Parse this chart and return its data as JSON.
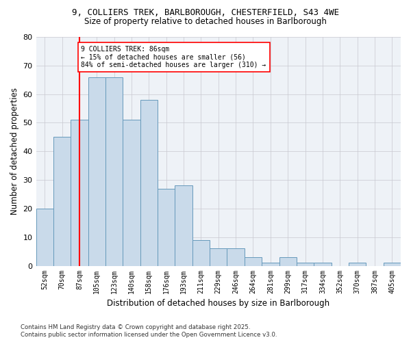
{
  "title1": "9, COLLIERS TREK, BARLBOROUGH, CHESTERFIELD, S43 4WE",
  "title2": "Size of property relative to detached houses in Barlborough",
  "xlabel": "Distribution of detached houses by size in Barlborough",
  "ylabel": "Number of detached properties",
  "categories": [
    "52sqm",
    "70sqm",
    "87sqm",
    "105sqm",
    "123sqm",
    "140sqm",
    "158sqm",
    "176sqm",
    "193sqm",
    "211sqm",
    "229sqm",
    "246sqm",
    "264sqm",
    "281sqm",
    "299sqm",
    "317sqm",
    "334sqm",
    "352sqm",
    "370sqm",
    "387sqm",
    "405sqm"
  ],
  "values": [
    20,
    45,
    51,
    66,
    66,
    51,
    58,
    27,
    28,
    9,
    6,
    6,
    3,
    1,
    3,
    1,
    1,
    0,
    1,
    0,
    1
  ],
  "bar_color": "#c9daea",
  "bar_edge_color": "#6699bb",
  "red_line_index": 2,
  "ylim": [
    0,
    80
  ],
  "yticks": [
    0,
    10,
    20,
    30,
    40,
    50,
    60,
    70,
    80
  ],
  "annotation_title": "9 COLLIERS TREK: 86sqm",
  "annotation_line1": "← 15% of detached houses are smaller (56)",
  "annotation_line2": "84% of semi-detached houses are larger (310) →",
  "footer1": "Contains HM Land Registry data © Crown copyright and database right 2025.",
  "footer2": "Contains public sector information licensed under the Open Government Licence v3.0.",
  "bg_color": "#ffffff",
  "plot_bg_color": "#eef2f7",
  "grid_color": "#c8c8d0"
}
